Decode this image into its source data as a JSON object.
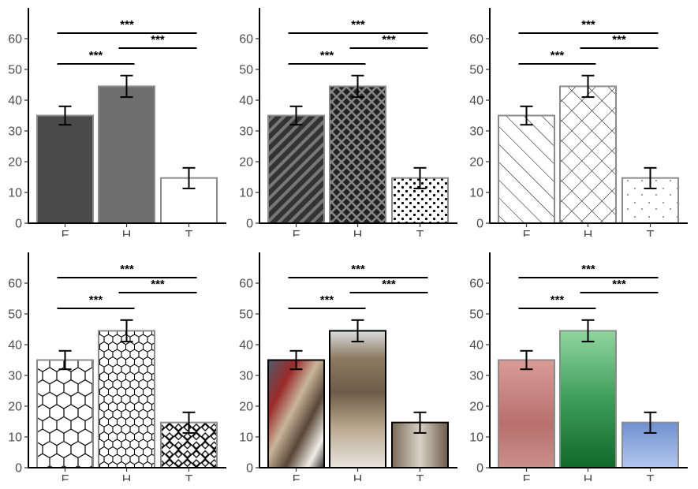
{
  "chart_data": {
    "type": "bar",
    "layout": "2x3 small multiples",
    "categories": [
      "F",
      "H",
      "T"
    ],
    "values": [
      35,
      44.5,
      14.7
    ],
    "error_bars": [
      [
        32,
        38
      ],
      [
        41,
        48
      ],
      [
        11.3,
        18
      ]
    ],
    "ylim": [
      0,
      70
    ],
    "yticks": [
      0,
      10,
      20,
      30,
      40,
      50,
      60
    ],
    "grid": false,
    "significance": [
      {
        "from": "F",
        "to": "H",
        "label": "***"
      },
      {
        "from": "H",
        "to": "T",
        "label": "***"
      },
      {
        "from": "F",
        "to": "T",
        "label": "***"
      }
    ],
    "panels": [
      {
        "fill_style": "solid grey shades",
        "bar_colors": [
          "#4a4a4a",
          "#6e6e6e",
          "#ffffff"
        ]
      },
      {
        "fill_style": "stripes, crosshatch, dots",
        "bar_colors": [
          "#333333",
          "#333333",
          "#ffffff"
        ]
      },
      {
        "fill_style": "sparse lines, sparse crosshatch, sparse dots",
        "bar_colors": [
          "#ffffff",
          "#ffffff",
          "#ffffff"
        ]
      },
      {
        "fill_style": "hexagons, small hexagons, weave",
        "bar_colors": [
          "#ffffff",
          "#ffffff",
          "#ffffff"
        ]
      },
      {
        "fill_style": "kitten photos",
        "bar_colors": [
          "#8a6a55",
          "#a08a70",
          "#8c7a66"
        ]
      },
      {
        "fill_style": "watercolor gradients",
        "bar_colors": [
          "#c98a86",
          "#3f9e5a",
          "#8aa6d8"
        ]
      }
    ]
  }
}
